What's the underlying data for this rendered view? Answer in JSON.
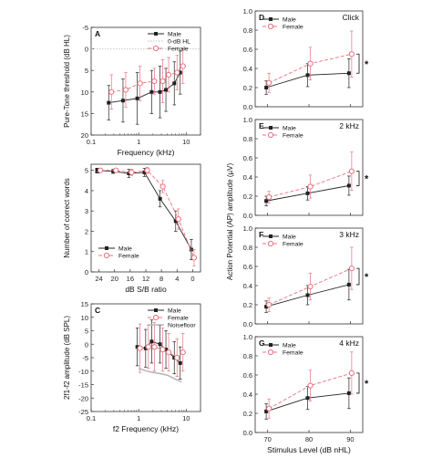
{
  "colors": {
    "male": "#222222",
    "female": "#e8737f",
    "noise": "#b8b8b8",
    "ref": "#bbbbbb",
    "axis": "#333333"
  },
  "chart_data": [
    {
      "id": "A",
      "type": "line",
      "panel_label": "A",
      "xlabel": "Frequency (kHz)",
      "ylabel": "Pure-Tone threshold (dB HL)",
      "xscale": "log",
      "xlim": [
        0.1,
        20
      ],
      "ylim": [
        -5,
        20
      ],
      "yinverted": true,
      "xticks": [
        0.1,
        1,
        10
      ],
      "xtick_labels": [
        "0.1",
        "1",
        "10"
      ],
      "yticks": [
        -5,
        0,
        5,
        10,
        15,
        20
      ],
      "ytick_labels": [
        "-5",
        "0",
        "5",
        "10",
        "15",
        "20"
      ],
      "legend": [
        "Male",
        "0-dB HL",
        "Female"
      ],
      "legend_position": "top-right",
      "ref_line": {
        "name": "0-dB HL",
        "y": 0
      },
      "series": [
        {
          "name": "Male",
          "x": [
            0.25,
            0.5,
            1,
            2,
            3,
            4,
            6,
            8
          ],
          "y": [
            12.5,
            12,
            11.5,
            10,
            10,
            9.5,
            8,
            5.5
          ],
          "err": [
            4,
            5,
            6,
            5,
            6,
            5,
            5,
            5
          ]
        },
        {
          "name": "Female",
          "x": [
            0.25,
            0.5,
            1,
            2,
            3,
            4,
            6,
            8
          ],
          "y": [
            10,
            9.5,
            8,
            7.5,
            7.5,
            6,
            5.5,
            4
          ],
          "err": [
            4,
            4,
            4,
            3,
            5,
            4,
            4,
            4
          ]
        }
      ]
    },
    {
      "id": "B",
      "type": "line",
      "panel_label": "B",
      "xlabel": "dB S/B ratio",
      "ylabel": "Number of correct words",
      "xlim": [
        26,
        -2
      ],
      "ylim": [
        0,
        5.3
      ],
      "xticks": [
        24,
        20,
        16,
        12,
        8,
        4,
        0
      ],
      "xtick_labels": [
        "24",
        "20",
        "16",
        "12",
        "8",
        "4",
        "0"
      ],
      "yticks": [
        0,
        1,
        2,
        3,
        4,
        5
      ],
      "ytick_labels": [
        "0",
        "1",
        "2",
        "3",
        "4",
        "5"
      ],
      "legend": [
        "Male",
        "Female"
      ],
      "legend_position": "bottom-left",
      "series": [
        {
          "name": "Male",
          "x": [
            24,
            20,
            16,
            12,
            8,
            4,
            0
          ],
          "y": [
            5,
            4.95,
            4.85,
            4.9,
            3.6,
            2.5,
            1.1
          ],
          "err": [
            0.05,
            0.1,
            0.2,
            0.2,
            0.4,
            0.5,
            0.5
          ]
        },
        {
          "name": "Female",
          "x": [
            24,
            20,
            16,
            12,
            8,
            4,
            0
          ],
          "y": [
            5,
            5,
            4.9,
            5,
            4.2,
            2.6,
            0.7
          ],
          "err": [
            0.05,
            0.1,
            0.15,
            0.15,
            0.3,
            0.5,
            0.4
          ]
        }
      ]
    },
    {
      "id": "C",
      "type": "line",
      "panel_label": "C",
      "xlabel": "f2 Frequency (kHz)",
      "ylabel": "2f1-f2 amplitude (dB SPL)",
      "xscale": "log",
      "xlim": [
        0.1,
        20
      ],
      "ylim": [
        -25,
        15
      ],
      "xticks": [
        0.1,
        1,
        10
      ],
      "xtick_labels": [
        "0.1",
        "1",
        "10"
      ],
      "yticks": [
        -25,
        -20,
        -15,
        -10,
        -5,
        0,
        5,
        10,
        15
      ],
      "ytick_labels": [
        "-25",
        "-20",
        "-15",
        "-10",
        "-5",
        "0",
        "5",
        "10",
        "15"
      ],
      "legend": [
        "Male",
        "Female",
        "Noisefloor"
      ],
      "legend_position": "top-right",
      "series": [
        {
          "name": "Male",
          "x": [
            1,
            1.5,
            2,
            3,
            4,
            6,
            8
          ],
          "y": [
            -1,
            -1.5,
            1,
            0,
            -2,
            -5,
            -7
          ],
          "err": [
            7,
            7,
            8,
            7,
            7,
            6,
            6
          ]
        },
        {
          "name": "Female",
          "x": [
            1,
            1.5,
            2,
            3,
            4,
            6,
            8
          ],
          "y": [
            -1.5,
            -1,
            -1,
            -2,
            -3,
            -5,
            -3
          ],
          "err": [
            9,
            8,
            9,
            8,
            7,
            7,
            7
          ]
        },
        {
          "name": "Noisefloor",
          "x": [
            1,
            1.5,
            2,
            3,
            4,
            6,
            8
          ],
          "y": [
            -9,
            -10,
            -10.5,
            -11,
            -11.5,
            -13,
            -14
          ],
          "err": []
        }
      ]
    },
    {
      "id": "D",
      "type": "line",
      "panel_label": "D",
      "condition": "Click",
      "xlabel": "",
      "ylabel": "",
      "xlim": [
        67,
        93
      ],
      "ylim": [
        0,
        1
      ],
      "xticks": [
        70,
        80,
        90
      ],
      "xtick_labels": [
        "",
        "",
        ""
      ],
      "yticks": [
        0,
        0.2,
        0.4,
        0.6,
        0.8,
        1
      ],
      "ytick_labels": [
        "0.0",
        "0.2",
        "0.4",
        "0.6",
        "0.8",
        "1.0"
      ],
      "legend": [
        "Male",
        "Female"
      ],
      "legend_position": "top-left",
      "significance": "*",
      "series": [
        {
          "name": "Male",
          "x": [
            70,
            80,
            90
          ],
          "y": [
            0.2,
            0.33,
            0.35
          ],
          "err": [
            0.07,
            0.12,
            0.15
          ]
        },
        {
          "name": "Female",
          "x": [
            70,
            80,
            90
          ],
          "y": [
            0.25,
            0.45,
            0.55
          ],
          "err": [
            0.1,
            0.17,
            0.24
          ]
        }
      ]
    },
    {
      "id": "E",
      "type": "line",
      "panel_label": "E",
      "condition": "2 kHz",
      "xlabel": "",
      "ylabel": "",
      "xlim": [
        67,
        93
      ],
      "ylim": [
        0,
        1
      ],
      "xticks": [
        70,
        80,
        90
      ],
      "xtick_labels": [
        "",
        "",
        ""
      ],
      "yticks": [
        0,
        0.2,
        0.4,
        0.6,
        0.8,
        1
      ],
      "ytick_labels": [
        "0.0",
        "0.2",
        "0.4",
        "0.6",
        "0.8",
        "1.0"
      ],
      "legend": [
        "Male",
        "Female"
      ],
      "legend_position": "top-left",
      "significance": "*",
      "series": [
        {
          "name": "Male",
          "x": [
            70,
            80,
            90
          ],
          "y": [
            0.15,
            0.23,
            0.31
          ],
          "err": [
            0.05,
            0.07,
            0.1
          ]
        },
        {
          "name": "Female",
          "x": [
            70,
            80,
            90
          ],
          "y": [
            0.19,
            0.3,
            0.46
          ],
          "err": [
            0.06,
            0.12,
            0.2
          ]
        }
      ]
    },
    {
      "id": "F",
      "type": "line",
      "panel_label": "F",
      "condition": "3 kHz",
      "xlabel": "",
      "ylabel": "Action Potential (AP) amplitude (µV)",
      "xlim": [
        67,
        93
      ],
      "ylim": [
        0,
        1
      ],
      "xticks": [
        70,
        80,
        90
      ],
      "xtick_labels": [
        "",
        "",
        ""
      ],
      "yticks": [
        0,
        0.2,
        0.4,
        0.6,
        0.8,
        1
      ],
      "ytick_labels": [
        "0.0",
        "0.2",
        "0.4",
        "0.6",
        "0.8",
        "1.0"
      ],
      "legend": [
        "Male",
        "Female"
      ],
      "legend_position": "top-left",
      "significance": "*",
      "series": [
        {
          "name": "Male",
          "x": [
            70,
            80,
            90
          ],
          "y": [
            0.18,
            0.3,
            0.41
          ],
          "err": [
            0.06,
            0.1,
            0.16
          ]
        },
        {
          "name": "Female",
          "x": [
            70,
            80,
            90
          ],
          "y": [
            0.2,
            0.39,
            0.58
          ],
          "err": [
            0.07,
            0.14,
            0.22
          ]
        }
      ]
    },
    {
      "id": "G",
      "type": "line",
      "panel_label": "G",
      "condition": "4 kHz",
      "xlabel": "Stimulus Level (dB nHL)",
      "ylabel": "",
      "xlim": [
        67,
        93
      ],
      "ylim": [
        0,
        1
      ],
      "xticks": [
        70,
        80,
        90
      ],
      "xtick_labels": [
        "70",
        "80",
        "90"
      ],
      "yticks": [
        0,
        0.2,
        0.4,
        0.6,
        0.8,
        1
      ],
      "ytick_labels": [
        "0.0",
        "0.2",
        "0.4",
        "0.6",
        "0.8",
        "1.0"
      ],
      "legend": [
        "Male",
        "Female"
      ],
      "legend_position": "top-left",
      "significance": "*",
      "series": [
        {
          "name": "Male",
          "x": [
            70,
            80,
            90
          ],
          "y": [
            0.22,
            0.36,
            0.41
          ],
          "err": [
            0.08,
            0.12,
            0.16
          ]
        },
        {
          "name": "Female",
          "x": [
            70,
            80,
            90
          ],
          "y": [
            0.25,
            0.49,
            0.62
          ],
          "err": [
            0.1,
            0.16,
            0.22
          ]
        }
      ]
    }
  ]
}
